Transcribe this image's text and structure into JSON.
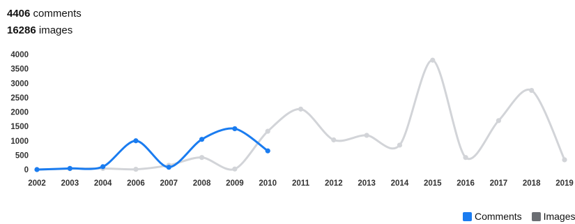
{
  "stats": [
    {
      "count": "4406",
      "label": "comments"
    },
    {
      "count": "16286",
      "label": "images"
    }
  ],
  "chart_data": {
    "type": "line",
    "categories": [
      "2002",
      "2003",
      "2004",
      "2006",
      "2007",
      "2008",
      "2009",
      "2010",
      "2011",
      "2012",
      "2013",
      "2014",
      "2015",
      "2016",
      "2017",
      "2018",
      "2019"
    ],
    "yticks": [
      0,
      500,
      1000,
      1500,
      2000,
      2500,
      3000,
      3500,
      4000
    ],
    "ylim": [
      0,
      4000
    ],
    "smooth": true,
    "grid": false,
    "legend_position": "bottom-right",
    "series": [
      {
        "name": "Comments",
        "color": "#1a7cf0",
        "values": [
          0,
          40,
          100,
          1000,
          80,
          1050,
          1420,
          650,
          null,
          null,
          null,
          null,
          null,
          null,
          null,
          null,
          null
        ]
      },
      {
        "name": "Images",
        "color": "#d2d4d8",
        "legend_color": "#6b6e73",
        "values": [
          0,
          30,
          40,
          10,
          150,
          420,
          20,
          1330,
          2100,
          1030,
          1190,
          850,
          3800,
          420,
          1700,
          2750,
          340
        ]
      }
    ]
  }
}
